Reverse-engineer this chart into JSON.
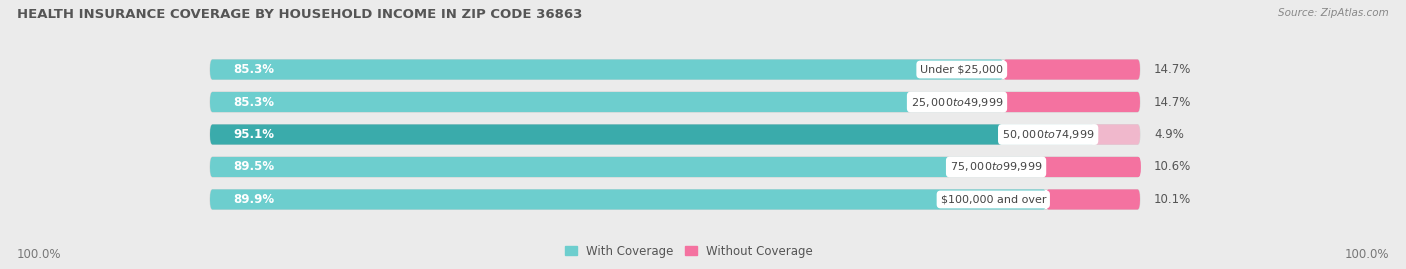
{
  "title": "HEALTH INSURANCE COVERAGE BY HOUSEHOLD INCOME IN ZIP CODE 36863",
  "source": "Source: ZipAtlas.com",
  "categories": [
    "Under $25,000",
    "$25,000 to $49,999",
    "$50,000 to $74,999",
    "$75,000 to $99,999",
    "$100,000 and over"
  ],
  "with_coverage": [
    85.3,
    85.3,
    95.1,
    89.5,
    89.9
  ],
  "without_coverage": [
    14.7,
    14.7,
    4.9,
    10.6,
    10.1
  ],
  "color_with": [
    "#6DCECE",
    "#6DCECE",
    "#3AABAB",
    "#6DCECE",
    "#6DCECE"
  ],
  "color_without": [
    "#F472A0",
    "#F472A0",
    "#F0B8CC",
    "#F472A0",
    "#F472A0"
  ],
  "background_color": "#ebebeb",
  "bar_bg_color": "#ffffff",
  "title_fontsize": 9.5,
  "label_fontsize": 8.5,
  "tick_fontsize": 8.5,
  "legend_fontsize": 8.5,
  "source_fontsize": 7.5,
  "x_label": "100.0%"
}
